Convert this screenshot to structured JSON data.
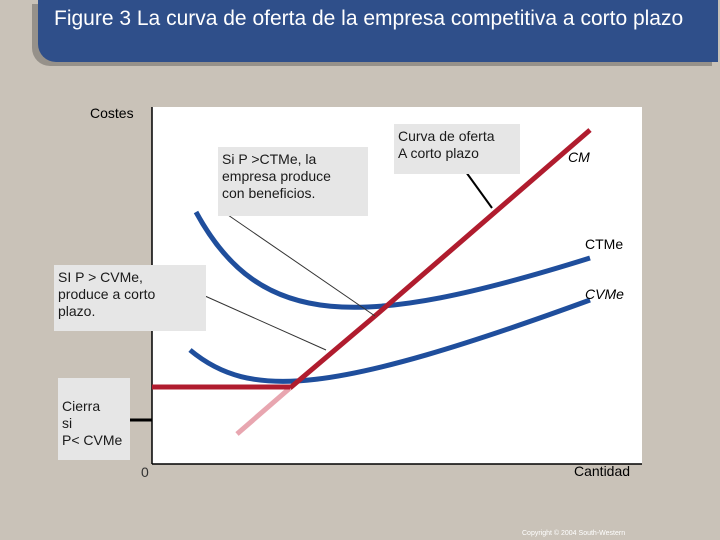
{
  "title": "Figure 3 La curva de oferta de la empresa competitiva a corto plazo",
  "axis": {
    "y_label": "Costes",
    "x_label": "Cantidad",
    "origin": "0"
  },
  "curves": {
    "cm": "CM",
    "ctme": "CTMe",
    "cvme": "CVMe"
  },
  "notes": {
    "supply_curve": [
      "Curva de oferta",
      "A corto plazo"
    ],
    "profit": [
      "Si P >CTMe, la",
      "empresa  produce",
      "con beneficios."
    ],
    "produce": [
      "SI P > CVMe,",
      "produce a corto",
      "plazo."
    ],
    "shutdown": [
      "Cierra",
      "si",
      "P< CVMe"
    ]
  },
  "copyright": "Copyright © 2004  South-Western",
  "colors": {
    "title_bg": "#2f4f8a",
    "cost_curves": "#1f4e9c",
    "supply_curve": "#b01c2e",
    "supply_curve_faded": "#e8a6b0",
    "slide_bg": "#c9c2b8"
  }
}
